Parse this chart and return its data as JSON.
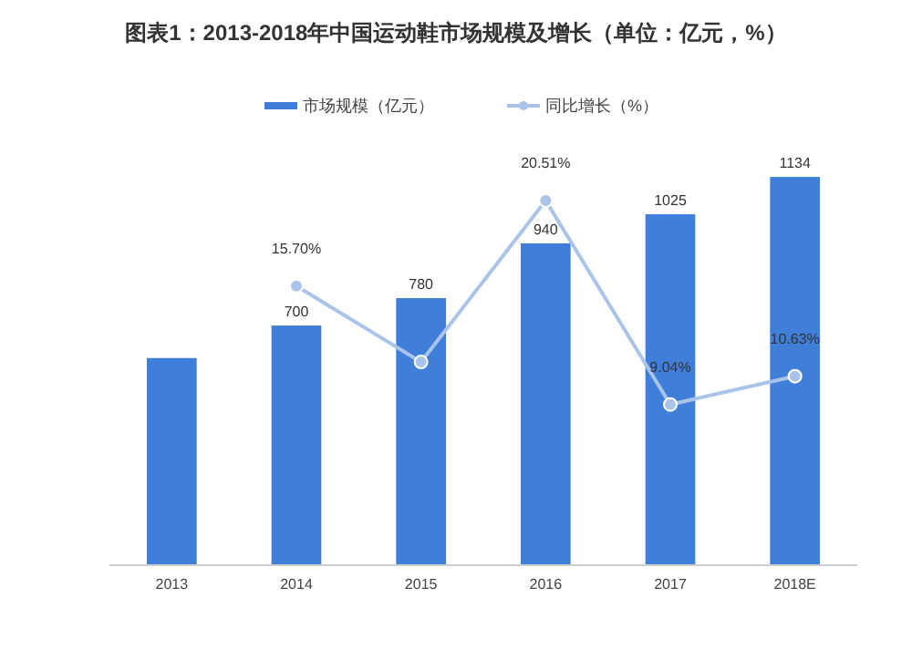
{
  "chart_data": {
    "type": "bar",
    "title": "图表1：2013-2018年中国运动鞋市场规模及增长（单位：亿元，%）",
    "categories": [
      "2013",
      "2014",
      "2015",
      "2016",
      "2017",
      "2018E"
    ],
    "legend": "top",
    "grid": false,
    "series": [
      {
        "name": "市场规模（亿元）",
        "color": "#3f7fd9",
        "values": [
          605,
          700,
          780,
          940,
          1025,
          1134
        ],
        "value_labels": [
          null,
          "700",
          "780",
          "940",
          "1025",
          "1134"
        ]
      },
      {
        "name": "同比增长（%）",
        "type": "line",
        "axis": "y2",
        "color": "#a9c4e8",
        "marker": "circle",
        "values": [
          null,
          15.7,
          11.43,
          20.51,
          9.04,
          10.63
        ],
        "value_labels": [
          null,
          "15.70%",
          null,
          "20.51%",
          "9.04%",
          "10.63%"
        ]
      }
    ]
  }
}
